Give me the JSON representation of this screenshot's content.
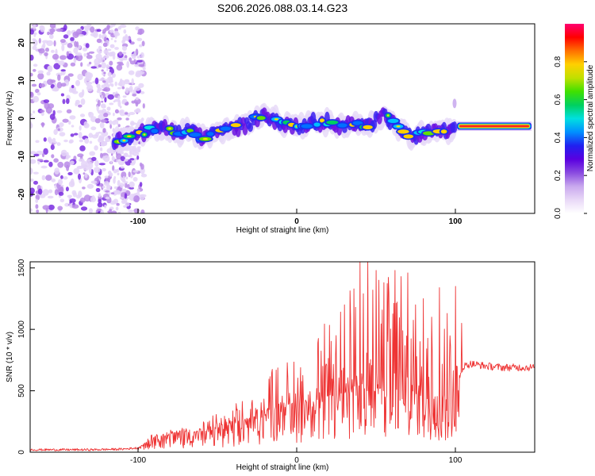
{
  "chart_data": [
    {
      "type": "heatmap",
      "title": "S206.2026.088.03.14.G23",
      "xlabel": "Height of straight line (km)",
      "ylabel": "Frequency (Hz)",
      "xlim": [
        -168,
        150
      ],
      "ylim": [
        -25,
        25
      ],
      "xticks": [
        -100,
        0,
        100
      ],
      "xtick_labels": [
        "-100",
        "0",
        "100"
      ],
      "yticks": [
        -20,
        -10,
        0,
        10,
        20
      ],
      "ytick_labels": [
        "-20",
        "-10",
        "0",
        "10",
        "20"
      ],
      "colorbar": {
        "label": "Normalized spectral amplitude",
        "range": [
          0,
          1
        ],
        "ticks": [
          0.0,
          0.2,
          0.4,
          0.6,
          0.8
        ],
        "tick_labels": [
          "0.0",
          "0.2",
          "0.4",
          "0.6",
          "0.8"
        ],
        "colors": [
          "#ffffff",
          "#e9d9f7",
          "#c9a8ee",
          "#8a4be0",
          "#5a00e0",
          "#2020f0",
          "#0090ff",
          "#00e0e0",
          "#00d060",
          "#40e000",
          "#c0e000",
          "#ffd000",
          "#ff7000",
          "#ff0000",
          "#ff0070"
        ]
      },
      "ridge": {
        "x": [
          -115,
          -108,
          -100,
          -92,
          -84,
          -76,
          -68,
          -60,
          -52,
          -44,
          -36,
          -28,
          -22,
          -16,
          -10,
          -4,
          2,
          8,
          14,
          20,
          28,
          36,
          44,
          52,
          56,
          60,
          66,
          72,
          78,
          84,
          90,
          96,
          100,
          110,
          125,
          140,
          148
        ],
        "y": [
          -6,
          -5,
          -4,
          -3,
          -2,
          -4,
          -3,
          -5,
          -4,
          -3,
          -2,
          -1,
          1,
          0,
          -1,
          -2,
          -2,
          -1,
          -1,
          -1,
          -2,
          -1,
          -2,
          0,
          1,
          -1,
          -3,
          -5,
          -4,
          -3,
          -3,
          -3,
          -2,
          -2,
          -2,
          -2,
          -2
        ]
      }
    },
    {
      "type": "line",
      "xlabel": "Height of straight line (km)",
      "ylabel": "SNR (10 * v/v)",
      "xlim": [
        -168,
        150
      ],
      "ylim": [
        0,
        1550
      ],
      "xticks": [
        -100,
        0,
        100
      ],
      "xtick_labels": [
        "-100",
        "0",
        "100"
      ],
      "yticks": [
        0,
        500,
        1000,
        1500
      ],
      "ytick_labels": [
        "0",
        "500",
        "1000",
        "1500"
      ],
      "series": [
        {
          "name": "SNR",
          "color": "#ee3333",
          "x": [
            -168,
            -150,
            -130,
            -110,
            -100,
            -95,
            -90,
            -80,
            -70,
            -60,
            -50,
            -40,
            -30,
            -25,
            -20,
            -15,
            -10,
            -5,
            0,
            10,
            20,
            30,
            35,
            40,
            45,
            50,
            55,
            60,
            65,
            70,
            75,
            80,
            85,
            90,
            95,
            100,
            105,
            110,
            120,
            130,
            140,
            150
          ],
          "baseline": [
            20,
            20,
            20,
            25,
            35,
            80,
            120,
            150,
            160,
            170,
            200,
            220,
            260,
            300,
            330,
            360,
            380,
            390,
            380,
            420,
            460,
            500,
            520,
            540,
            540,
            520,
            520,
            520,
            500,
            500,
            480,
            470,
            460,
            440,
            430,
            500,
            700,
            720,
            700,
            690,
            690,
            690
          ],
          "envelope": [
            15,
            15,
            15,
            20,
            40,
            100,
            160,
            180,
            200,
            250,
            320,
            380,
            500,
            560,
            620,
            700,
            740,
            780,
            760,
            900,
            1100,
            1300,
            1450,
            1540,
            1550,
            1480,
            1500,
            1480,
            1460,
            1420,
            1300,
            1360,
            1300,
            1260,
            1220,
            1150,
            200,
            150,
            90,
            70,
            60,
            50
          ],
          "peaks": {
            "x": [
              25,
              30,
              34,
              36,
              37,
              40,
              42,
              45,
              48,
              50,
              52,
              55,
              58,
              62,
              66,
              70,
              75,
              80,
              85,
              90,
              95,
              100,
              104
            ],
            "y": [
              950,
              1200,
              1100,
              1330,
              1180,
              1550,
              1290,
              1550,
              1320,
              1480,
              1400,
              1380,
              1300,
              1480,
              1430,
              1460,
              1200,
              1250,
              1100,
              1340,
              1130,
              1350,
              1050
            ]
          }
        }
      ]
    }
  ]
}
